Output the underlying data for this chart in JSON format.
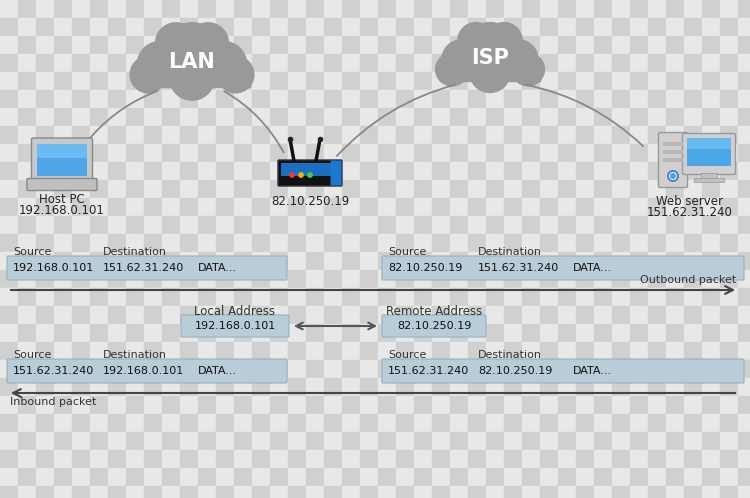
{
  "checker_light": "#e8e8e8",
  "checker_dark": "#d0d0d0",
  "cloud_color": "#999999",
  "cloud_color2": "#aaaaaa",
  "lan_label": "LAN",
  "isp_label": "ISP",
  "router_ip": "82.10.250.19",
  "host_label": "Host PC",
  "host_ip": "192.168.0.101",
  "server_label": "Web server",
  "server_ip": "151.62.31.240",
  "outbound_label": "Outbound packet",
  "inbound_label": "Inbound packet",
  "local_addr_label": "Local Address",
  "remote_addr_label": "Remote Address",
  "local_ip": "192.168.0.101",
  "remote_ip": "82.10.250.19",
  "packet_box_color": "#b8cdd8",
  "packet_box_edge": "#9ab0c0",
  "text_color": "#222222",
  "label_color": "#333333",
  "source_bold": true,
  "dest_bold": true,
  "outbound_row": {
    "left_src": "192.168.0.101",
    "left_dst": "151.62.31.240",
    "left_data": "DATA...",
    "right_src": "82.10.250.19",
    "right_dst": "151.62.31.240",
    "right_data": "DATA..."
  },
  "inbound_row": {
    "left_src": "151.62.31.240",
    "left_dst": "192.168.0.101",
    "left_data": "DATA...",
    "right_src": "151.62.31.240",
    "right_dst": "82.10.250.19",
    "right_data": "DATA..."
  },
  "figw": 7.5,
  "figh": 4.98,
  "dpi": 100
}
